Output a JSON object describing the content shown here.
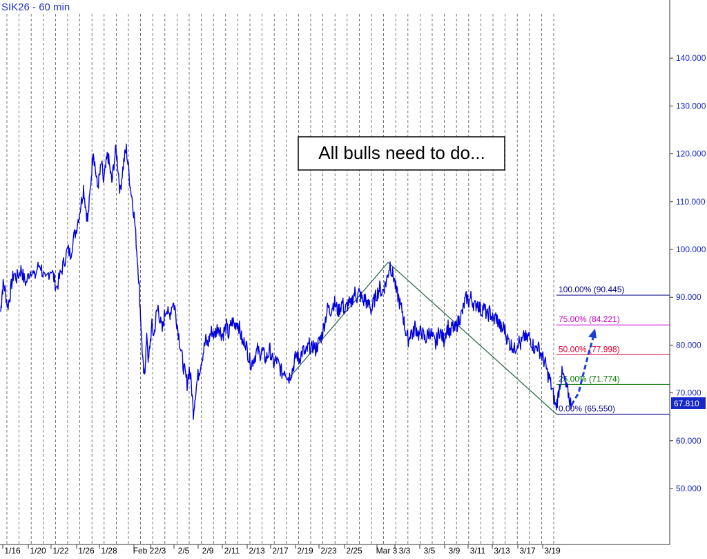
{
  "chart_data": {
    "type": "line",
    "title": "SIK26 - 60 min",
    "annotation": "All bulls need to do...",
    "last_price": "67.810",
    "y_axis": {
      "side": "right",
      "ylim": [
        40,
        150
      ],
      "ticks": [
        "50.000",
        "60.000",
        "70.000",
        "80.000",
        "90.000",
        "100.000",
        "110.000",
        "120.000",
        "130.000",
        "140.000"
      ]
    },
    "x_ticks": [
      "1/16",
      "1/20",
      "1/22",
      "1/26",
      "1/28",
      "Feb 2",
      "2/3",
      "2/5",
      "2/9",
      "2/11",
      "2/13",
      "2/17",
      "2/19",
      "2/23",
      "2/25",
      "Mar 3",
      "3/3",
      "3/5",
      "3/9",
      "3/11",
      "3/13",
      "3/17",
      "3/19"
    ],
    "grid": "vertical dashed",
    "price_color": "#0000dd",
    "series": [
      {
        "values": [
          [
            1,
            87
          ],
          [
            3,
            91
          ],
          [
            5,
            93
          ],
          [
            8,
            91
          ],
          [
            11,
            88
          ],
          [
            14,
            90
          ],
          [
            17,
            93
          ],
          [
            20,
            95
          ],
          [
            24,
            94
          ],
          [
            28,
            95
          ],
          [
            31,
            96
          ],
          [
            34,
            94
          ],
          [
            38,
            93
          ],
          [
            42,
            95
          ],
          [
            46,
            96
          ],
          [
            50,
            94
          ],
          [
            54,
            96
          ],
          [
            58,
            97
          ],
          [
            62,
            95
          ],
          [
            66,
            93
          ],
          [
            70,
            95
          ],
          [
            74,
            96
          ],
          [
            78,
            94
          ],
          [
            82,
            92
          ],
          [
            86,
            94
          ],
          [
            90,
            96
          ],
          [
            94,
            98
          ],
          [
            98,
            100
          ],
          [
            102,
            99
          ],
          [
            106,
            102
          ],
          [
            110,
            104
          ],
          [
            114,
            107
          ],
          [
            118,
            110
          ],
          [
            121,
            113
          ],
          [
            124,
            109
          ],
          [
            127,
            106
          ],
          [
            130,
            111
          ],
          [
            133,
            117
          ],
          [
            135,
            121
          ],
          [
            138,
            117
          ],
          [
            141,
            113
          ],
          [
            144,
            115
          ],
          [
            147,
            118
          ],
          [
            150,
            114
          ],
          [
            153,
            117
          ],
          [
            156,
            120
          ],
          [
            159,
            117
          ],
          [
            162,
            114
          ],
          [
            165,
            118
          ],
          [
            168,
            121
          ],
          [
            171,
            117
          ],
          [
            174,
            112
          ],
          [
            177,
            116
          ],
          [
            180,
            119
          ],
          [
            183,
            121
          ],
          [
            186,
            117
          ],
          [
            189,
            113
          ],
          [
            192,
            110
          ],
          [
            195,
            106
          ],
          [
            198,
            100
          ],
          [
            201,
            94
          ],
          [
            203,
            88
          ],
          [
            205,
            82
          ],
          [
            207,
            76
          ],
          [
            209,
            73
          ],
          [
            211,
            78
          ],
          [
            213,
            82
          ],
          [
            215,
            76
          ],
          [
            217,
            80
          ],
          [
            220,
            84
          ],
          [
            223,
            82
          ],
          [
            226,
            86
          ],
          [
            229,
            88
          ],
          [
            232,
            85
          ],
          [
            235,
            83
          ],
          [
            238,
            86
          ],
          [
            241,
            88
          ],
          [
            244,
            86
          ],
          [
            247,
            87
          ],
          [
            250,
            89
          ],
          [
            253,
            88
          ],
          [
            256,
            85
          ],
          [
            259,
            82
          ],
          [
            262,
            79
          ],
          [
            265,
            76
          ],
          [
            268,
            74
          ],
          [
            271,
            72
          ],
          [
            274,
            75
          ],
          [
            277,
            72
          ],
          [
            280,
            66
          ],
          [
            283,
            70
          ],
          [
            286,
            73
          ],
          [
            289,
            75
          ],
          [
            292,
            77
          ],
          [
            295,
            79
          ],
          [
            298,
            81
          ],
          [
            301,
            80
          ],
          [
            304,
            82
          ],
          [
            307,
            83
          ],
          [
            310,
            82
          ],
          [
            313,
            83
          ],
          [
            316,
            84
          ],
          [
            319,
            83
          ],
          [
            322,
            82
          ],
          [
            325,
            83
          ],
          [
            328,
            84
          ],
          [
            331,
            82
          ],
          [
            334,
            84
          ],
          [
            337,
            85
          ],
          [
            340,
            84
          ],
          [
            343,
            85
          ],
          [
            346,
            84
          ],
          [
            349,
            82
          ],
          [
            352,
            80
          ],
          [
            355,
            81
          ],
          [
            358,
            79
          ],
          [
            361,
            77
          ],
          [
            364,
            76
          ],
          [
            367,
            77
          ],
          [
            370,
            78
          ],
          [
            373,
            79
          ],
          [
            376,
            78
          ],
          [
            379,
            79
          ],
          [
            382,
            78
          ],
          [
            385,
            77
          ],
          [
            388,
            78
          ],
          [
            391,
            79
          ],
          [
            394,
            77
          ],
          [
            397,
            76
          ],
          [
            400,
            77
          ],
          [
            403,
            76
          ],
          [
            406,
            75
          ],
          [
            409,
            74
          ],
          [
            412,
            75
          ],
          [
            415,
            74
          ],
          [
            418,
            73
          ],
          [
            421,
            74
          ],
          [
            424,
            75
          ],
          [
            427,
            77
          ],
          [
            430,
            78
          ],
          [
            433,
            77
          ],
          [
            436,
            78
          ],
          [
            439,
            79
          ],
          [
            442,
            78
          ],
          [
            445,
            79
          ],
          [
            448,
            80
          ],
          [
            451,
            79
          ],
          [
            454,
            80
          ],
          [
            457,
            79
          ],
          [
            460,
            80
          ],
          [
            463,
            81
          ],
          [
            466,
            82
          ],
          [
            469,
            84
          ],
          [
            472,
            86
          ],
          [
            475,
            88
          ],
          [
            478,
            87
          ],
          [
            481,
            88
          ],
          [
            484,
            89
          ],
          [
            487,
            88
          ],
          [
            490,
            87
          ],
          [
            493,
            88
          ],
          [
            496,
            89
          ],
          [
            499,
            87
          ],
          [
            502,
            88
          ],
          [
            505,
            89
          ],
          [
            508,
            88
          ],
          [
            511,
            90
          ],
          [
            514,
            91
          ],
          [
            517,
            90
          ],
          [
            520,
            91
          ],
          [
            523,
            90
          ],
          [
            526,
            89
          ],
          [
            529,
            90
          ],
          [
            532,
            88
          ],
          [
            535,
            89
          ],
          [
            538,
            87
          ],
          [
            541,
            89
          ],
          [
            544,
            90
          ],
          [
            547,
            91
          ],
          [
            550,
            92
          ],
          [
            553,
            91
          ],
          [
            556,
            92
          ],
          [
            559,
            93
          ],
          [
            562,
            95
          ],
          [
            565,
            97
          ],
          [
            568,
            95
          ],
          [
            571,
            94
          ],
          [
            574,
            91
          ],
          [
            577,
            90
          ],
          [
            580,
            88
          ],
          [
            583,
            87
          ],
          [
            586,
            84
          ],
          [
            589,
            82
          ],
          [
            592,
            81
          ],
          [
            595,
            83
          ],
          [
            598,
            82
          ],
          [
            601,
            84
          ],
          [
            604,
            83
          ],
          [
            607,
            82
          ],
          [
            610,
            83
          ],
          [
            613,
            82
          ],
          [
            616,
            81
          ],
          [
            619,
            82
          ],
          [
            622,
            83
          ],
          [
            625,
            82
          ],
          [
            628,
            81
          ],
          [
            631,
            80
          ],
          [
            634,
            82
          ],
          [
            637,
            83
          ],
          [
            640,
            82
          ],
          [
            643,
            81
          ],
          [
            646,
            83
          ],
          [
            649,
            84
          ],
          [
            652,
            82
          ],
          [
            655,
            84
          ],
          [
            658,
            83
          ],
          [
            661,
            84
          ],
          [
            664,
            85
          ],
          [
            667,
            86
          ],
          [
            670,
            87
          ],
          [
            673,
            89
          ],
          [
            676,
            90
          ],
          [
            679,
            89
          ],
          [
            682,
            90
          ],
          [
            685,
            89
          ],
          [
            688,
            88
          ],
          [
            691,
            89
          ],
          [
            694,
            88
          ],
          [
            697,
            87
          ],
          [
            700,
            88
          ],
          [
            703,
            87
          ],
          [
            706,
            86
          ],
          [
            709,
            87
          ],
          [
            712,
            86
          ],
          [
            715,
            85
          ],
          [
            718,
            86
          ],
          [
            721,
            85
          ],
          [
            724,
            84
          ],
          [
            727,
            83
          ],
          [
            730,
            84
          ],
          [
            733,
            82
          ],
          [
            736,
            81
          ],
          [
            739,
            80
          ],
          [
            742,
            80
          ],
          [
            745,
            79
          ],
          [
            748,
            80
          ],
          [
            751,
            81
          ],
          [
            754,
            80
          ],
          [
            757,
            81
          ],
          [
            760,
            82
          ],
          [
            763,
            81
          ],
          [
            766,
            82
          ],
          [
            769,
            81
          ],
          [
            772,
            80
          ],
          [
            775,
            79
          ],
          [
            778,
            80
          ],
          [
            781,
            79
          ],
          [
            784,
            78
          ],
          [
            787,
            77
          ],
          [
            790,
            76
          ],
          [
            793,
            74
          ],
          [
            796,
            73
          ],
          [
            799,
            71
          ],
          [
            802,
            69
          ],
          [
            805,
            67
          ],
          [
            808,
            69
          ],
          [
            811,
            72
          ],
          [
            814,
            74
          ],
          [
            817,
            73
          ],
          [
            820,
            71
          ],
          [
            823,
            70
          ],
          [
            826,
            68
          ],
          [
            828,
            67.81
          ]
        ]
      }
    ],
    "fibonacci": [
      {
        "label": "100.00% (90.445)",
        "value": 90.445,
        "color": "#000088"
      },
      {
        "label": "75.00% (84.221)",
        "value": 84.221,
        "color": "#cc00cc"
      },
      {
        "label": "50.00% (77.998)",
        "value": 77.998,
        "color": "#dd0033"
      },
      {
        "label": "25.00% (71.774)",
        "value": 71.774,
        "color": "#007700"
      },
      {
        "label": "0.00% (65.550)",
        "value": 65.55,
        "color": "#000088"
      }
    ]
  }
}
